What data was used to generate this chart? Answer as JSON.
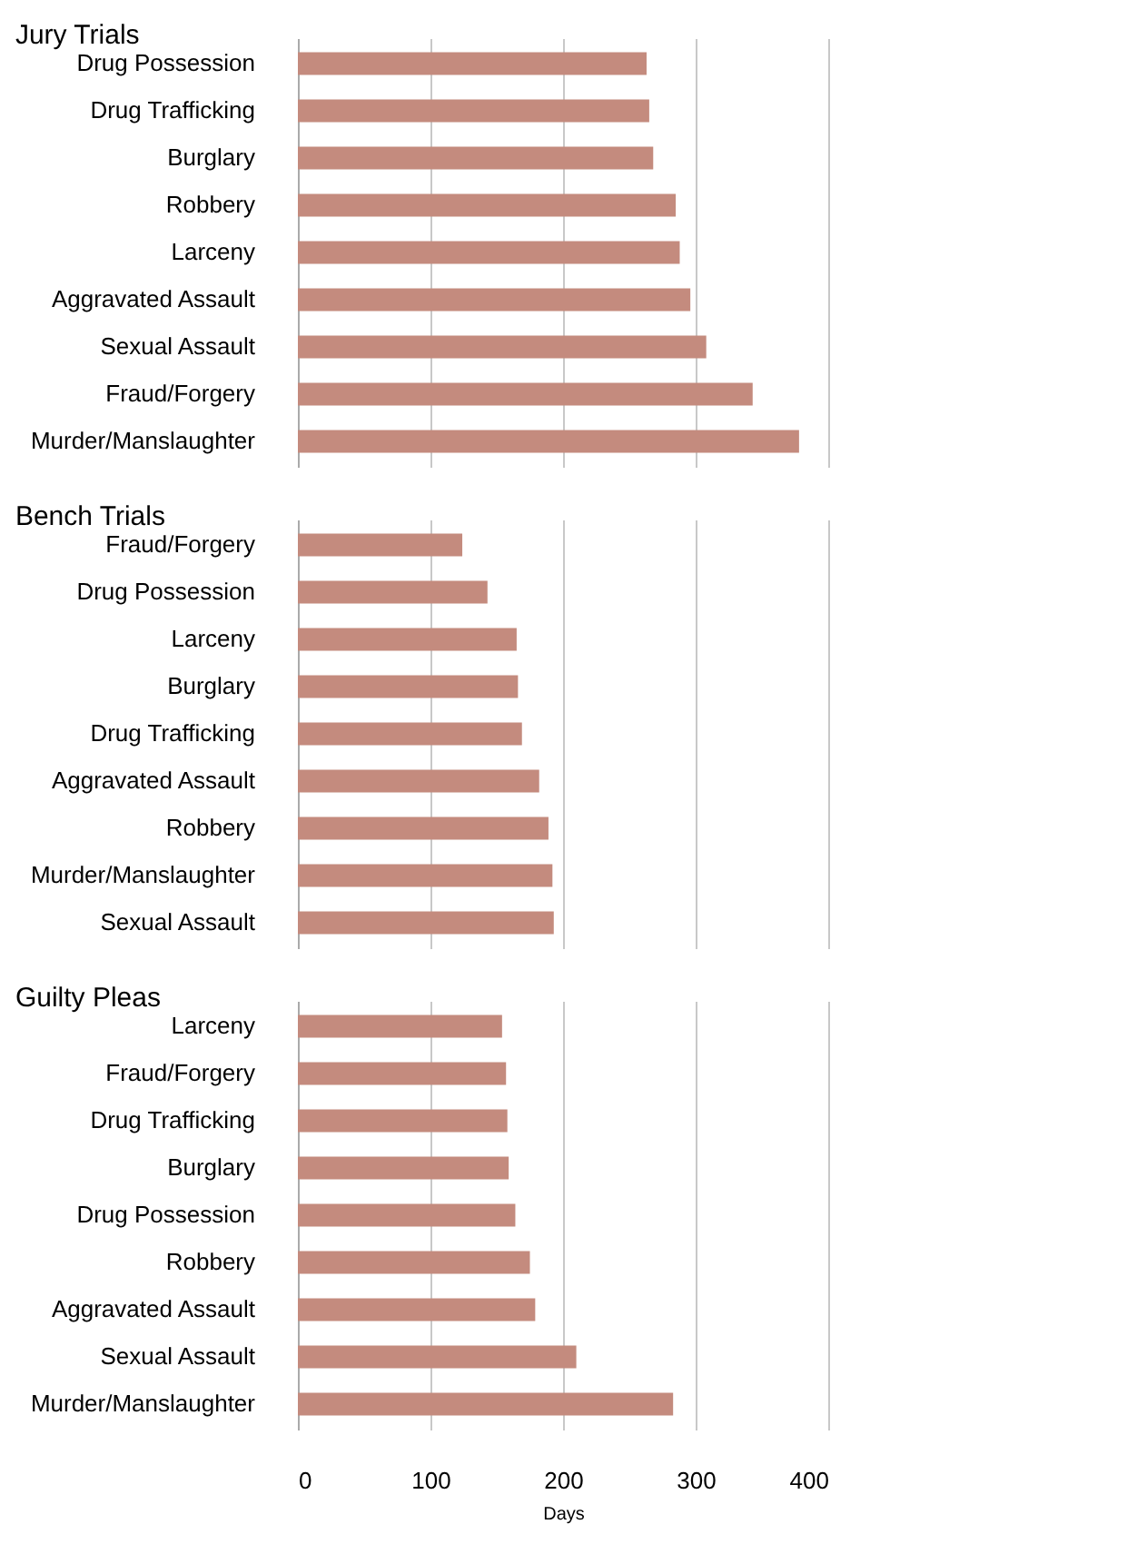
{
  "chart_data": [
    {
      "type": "bar",
      "orientation": "horizontal",
      "title": "Jury Trials",
      "categories": [
        "Drug Possession",
        "Drug Trafficking",
        "Burglary",
        "Robbery",
        "Larceny",
        "Aggravated Assault",
        "Sexual Assault",
        "Fraud/Forgery",
        "Murder/Manslaughter"
      ],
      "values": [
        263,
        265,
        268,
        285,
        288,
        296,
        308,
        343,
        378
      ],
      "color": "#c48b7e",
      "xlim": [
        0,
        400
      ],
      "xticks": [
        0,
        100,
        200,
        300,
        400
      ],
      "grid": "x",
      "tick_labels": "y"
    },
    {
      "type": "bar",
      "orientation": "horizontal",
      "title": "Bench Trials",
      "categories": [
        "Fraud/Forgery",
        "Drug Possession",
        "Larceny",
        "Burglary",
        "Drug Trafficking",
        "Aggravated Assault",
        "Robbery",
        "Murder/Manslaughter",
        "Sexual Assault"
      ],
      "values": [
        124,
        143,
        165,
        166,
        169,
        182,
        189,
        192,
        193
      ],
      "color": "#c48b7e",
      "xlim": [
        0,
        400
      ],
      "xticks": [
        0,
        100,
        200,
        300,
        400
      ],
      "grid": "x",
      "tick_labels": "y"
    },
    {
      "type": "bar",
      "orientation": "horizontal",
      "title": "Guilty Pleas",
      "categories": [
        "Larceny",
        "Fraud/Forgery",
        "Drug Trafficking",
        "Burglary",
        "Drug Possession",
        "Robbery",
        "Aggravated Assault",
        "Sexual Assault",
        "Murder/Manslaughter"
      ],
      "values": [
        154,
        157,
        158,
        159,
        164,
        175,
        179,
        210,
        283
      ],
      "color": "#c48b7e",
      "xlim": [
        0,
        400
      ],
      "xticks": [
        0,
        100,
        200,
        300,
        400
      ],
      "grid": "x",
      "xlabel": "Days"
    }
  ]
}
